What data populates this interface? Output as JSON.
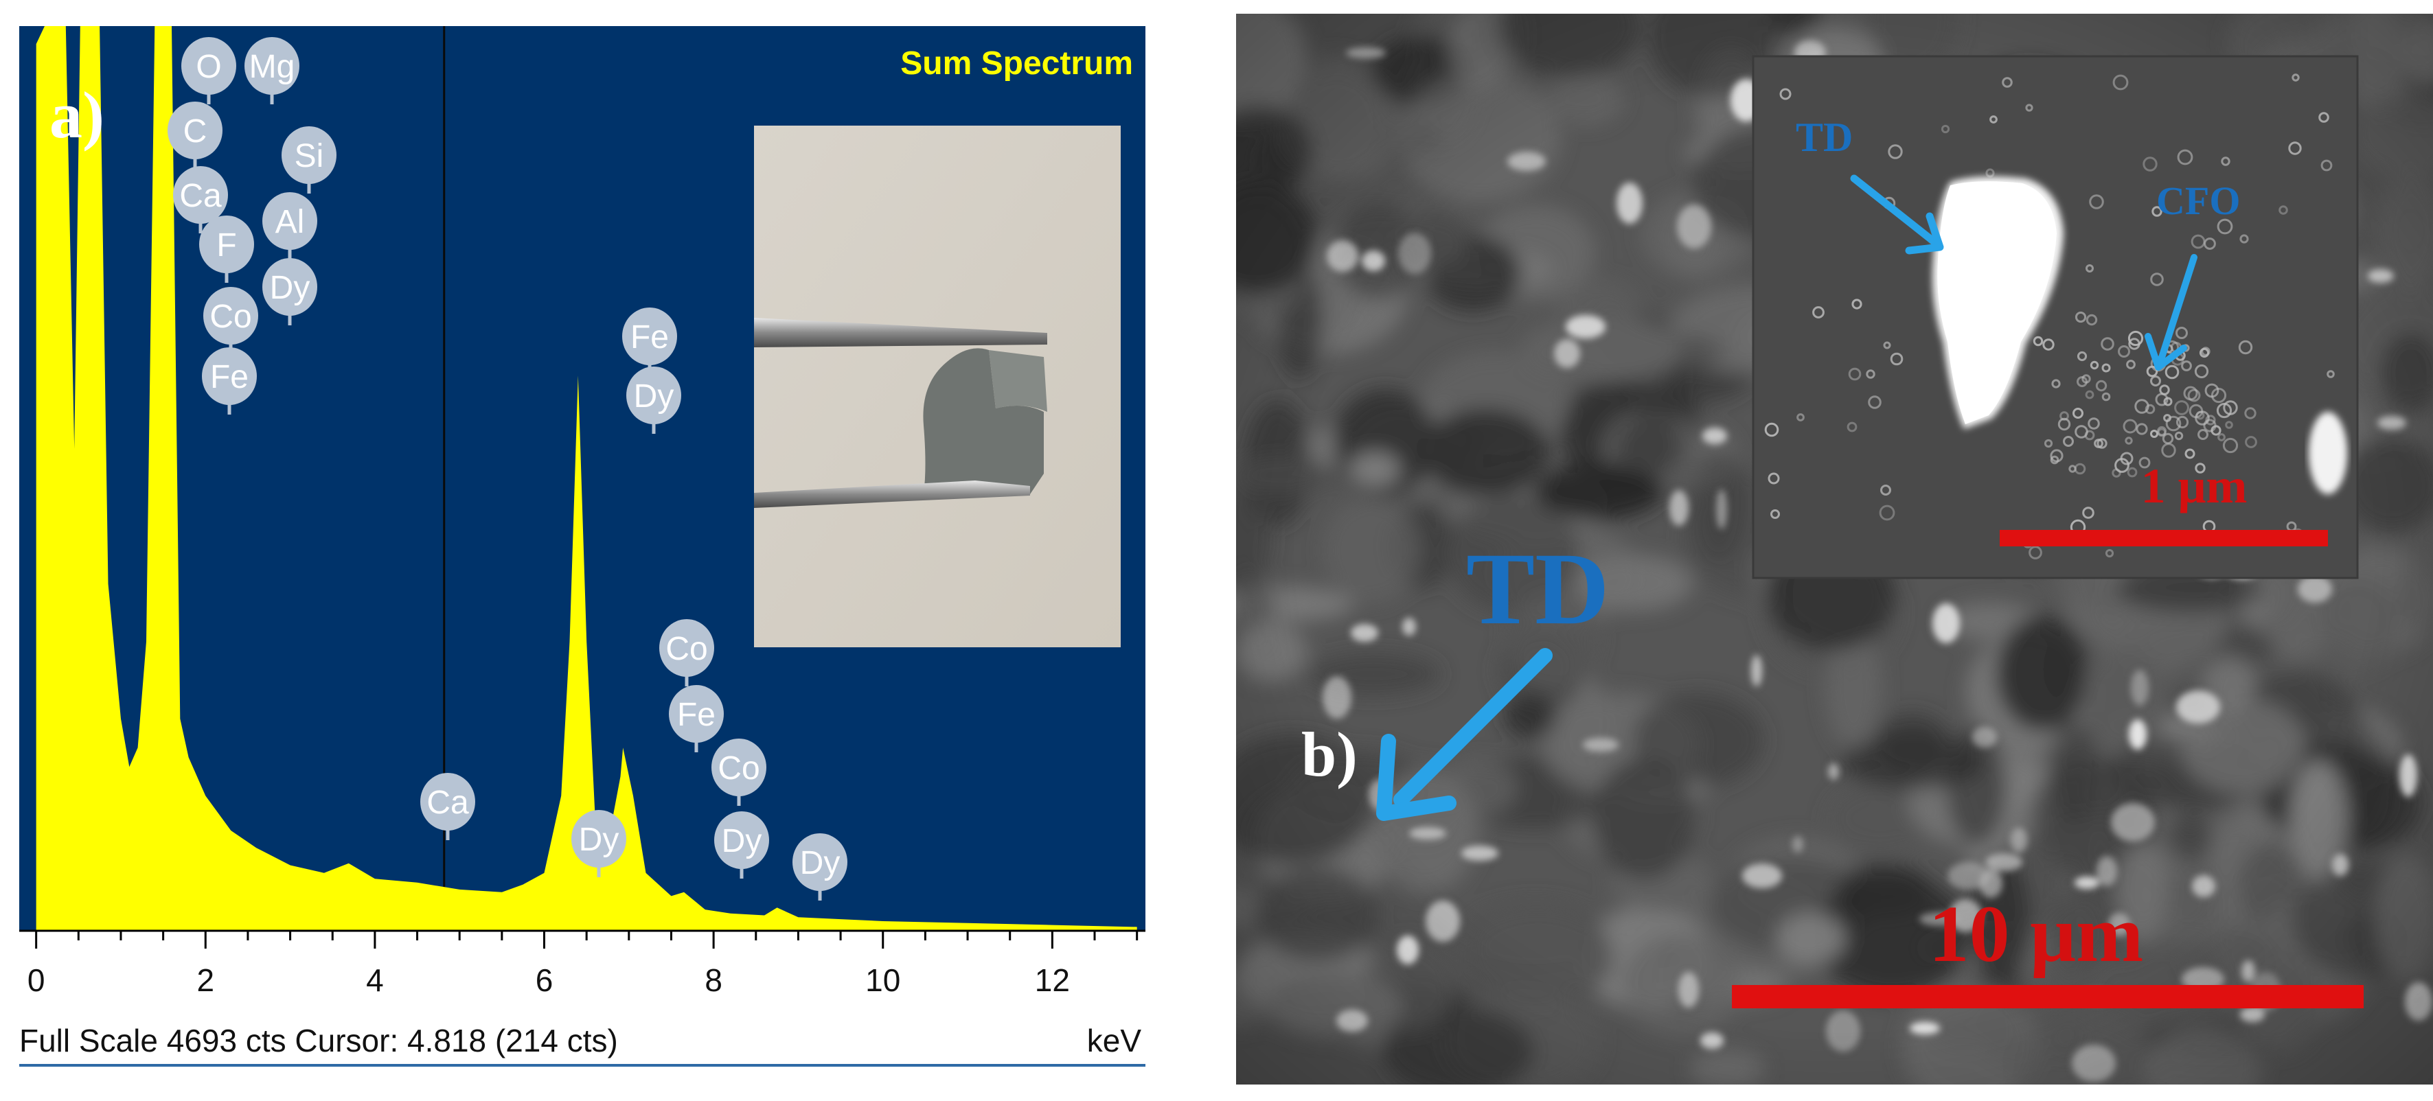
{
  "panel_a": {
    "label": "a)",
    "title": "Sum Spectrum",
    "footer": {
      "status": "Full Scale 4693 cts Cursor: 4.818  (214 cts)",
      "unit": "keV"
    },
    "colors": {
      "background": "#00336a",
      "spectrum": "#ffff00",
      "title": "#ffff00",
      "marker": "#b7c4d4",
      "marker_text": "#ffffff",
      "axis": "#000000",
      "footer_line": "#2e6aa6"
    },
    "inset_photo": {
      "description_icon": "photo-tweezers-film-icon"
    }
  },
  "chart_data": {
    "type": "line",
    "title": "Sum Spectrum",
    "xlabel": "keV",
    "xlim": [
      -0.2,
      13.1
    ],
    "x_ticks": [
      0,
      2,
      4,
      6,
      8,
      10,
      12
    ],
    "x_tick_labels": [
      "0",
      "2",
      "4",
      "6",
      "8",
      "10",
      "12"
    ],
    "full_scale_cts": 4693,
    "cursor_kev": 4.818,
    "cursor_cts": 214,
    "grid": false,
    "series": [
      {
        "x": [
          0.0,
          0.1,
          0.2,
          0.28,
          0.35,
          0.45,
          0.52,
          0.6,
          0.68,
          0.75,
          0.85,
          1.0,
          1.1,
          1.2,
          1.3,
          1.4,
          1.5,
          1.6,
          1.7,
          1.8,
          2.0,
          2.3,
          2.6,
          3.0,
          3.4,
          3.69,
          4.0,
          4.5,
          5.0,
          5.5,
          5.75,
          6.0,
          6.2,
          6.3,
          6.4,
          6.5,
          6.6,
          6.75,
          6.9,
          6.93,
          7.05,
          7.2,
          7.5,
          7.65,
          7.9,
          8.2,
          8.6,
          8.75,
          9.0,
          9.5,
          10.0,
          11.0,
          12.0,
          13.0
        ],
        "y": [
          4600,
          4693,
          4693,
          4693,
          4693,
          2500,
          4693,
          4693,
          4693,
          4693,
          1800,
          1100,
          850,
          950,
          1500,
          4693,
          4693,
          4693,
          1100,
          900,
          700,
          520,
          430,
          340,
          300,
          350,
          270,
          250,
          214,
          200,
          240,
          300,
          700,
          1500,
          2880,
          1500,
          600,
          450,
          800,
          950,
          700,
          300,
          180,
          200,
          110,
          90,
          80,
          120,
          70,
          60,
          50,
          40,
          30,
          20
        ]
      }
    ],
    "peak_labels": [
      {
        "element": "O",
        "x": 0.52
      },
      {
        "element": "Mg",
        "x": 1.25
      },
      {
        "element": "C",
        "x": 0.28
      },
      {
        "element": "Si",
        "x": 1.74
      },
      {
        "element": "Ca",
        "x": 0.35
      },
      {
        "element": "Al",
        "x": 1.49
      },
      {
        "element": "F",
        "x": 0.68
      },
      {
        "element": "Dy",
        "x": 1.55
      },
      {
        "element": "Co",
        "x": 0.78
      },
      {
        "element": "Fe",
        "x": 0.7
      },
      {
        "element": "Fe",
        "x": 6.4
      },
      {
        "element": "Dy",
        "x": 6.4
      },
      {
        "element": "Co",
        "x": 6.93
      },
      {
        "element": "Fe",
        "x": 7.06
      },
      {
        "element": "Co",
        "x": 7.65
      },
      {
        "element": "Dy",
        "x": 7.65
      },
      {
        "element": "Ca",
        "x": 3.69
      },
      {
        "element": "Dy",
        "x": 5.75
      },
      {
        "element": "Dy",
        "x": 8.75
      }
    ]
  },
  "panel_b": {
    "label": "b)",
    "main_annotation": "TD",
    "main_scalebar": "10 μm",
    "inset": {
      "label_td": "TD",
      "label_cfo": "CFO",
      "scalebar": "1 μm"
    },
    "colors": {
      "annotation": "#1a6fbf",
      "arrow": "#29a3e8",
      "scalebar": "#e01010",
      "scalebar_text": "#d41010",
      "sem_base": "#5a5a5a"
    }
  }
}
